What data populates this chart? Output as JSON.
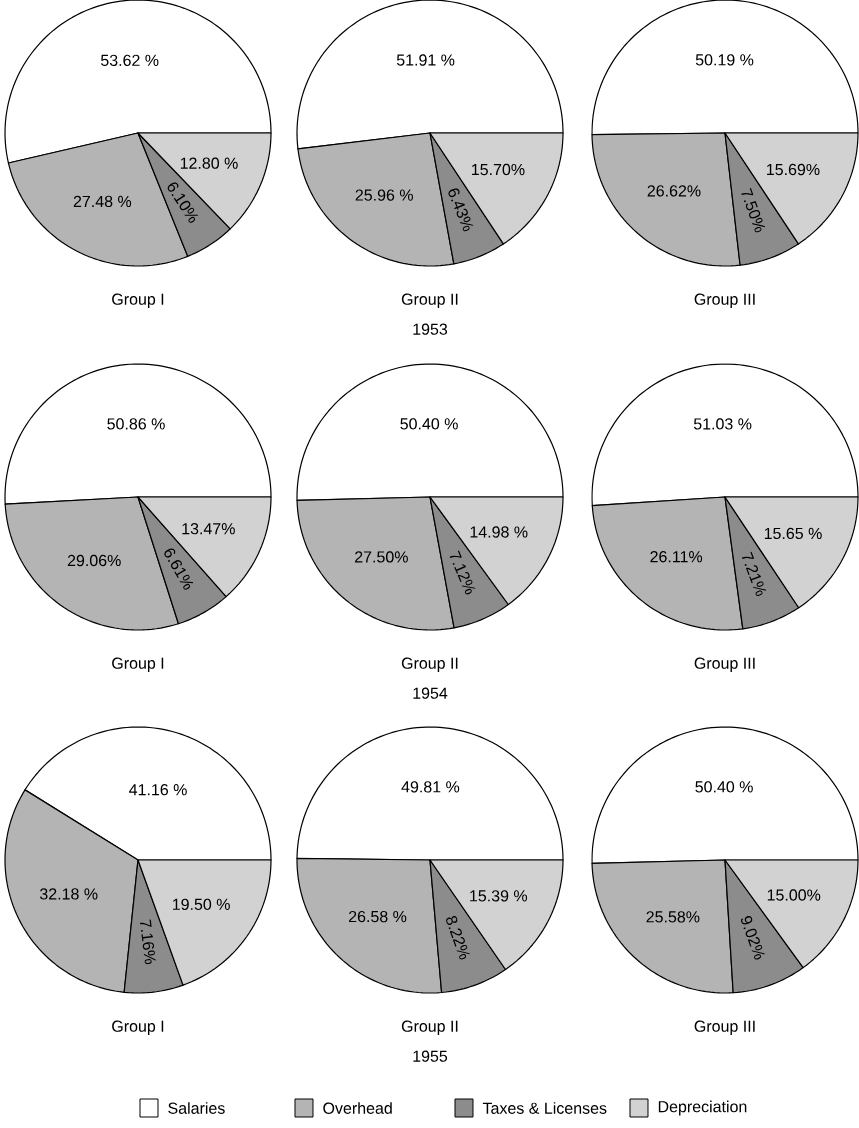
{
  "chart_data": [
    {
      "type": "pie",
      "title": "Group I",
      "categories": [
        null,
        null,
        null,
        null
      ],
      "values": [
        53.62,
        27.48,
        6.1,
        12.8
      ],
      "value_labels": [
        "53.62 %",
        "27.48 %",
        "6.10%",
        "12.80 %"
      ],
      "colors": [
        "#ffffff",
        "#b4b4b4",
        "#8c8c8c",
        "#d2d2d2"
      ]
    },
    {
      "type": "pie",
      "title": "Group II",
      "categories": [
        null,
        null,
        null,
        null
      ],
      "values": [
        51.91,
        25.96,
        6.43,
        15.7
      ],
      "value_labels": [
        "51.91 %",
        "25.96 %",
        "6.43%",
        "15.70%"
      ],
      "colors": [
        "#ffffff",
        "#b4b4b4",
        "#8c8c8c",
        "#d2d2d2"
      ],
      "annotations": [
        "1953"
      ]
    },
    {
      "type": "pie",
      "title": "Group III",
      "categories": [
        null,
        null,
        null,
        null
      ],
      "values": [
        50.19,
        26.62,
        7.5,
        15.69
      ],
      "value_labels": [
        "50.19 %",
        "26.62%",
        "7.50%",
        "15.69%"
      ],
      "colors": [
        "#ffffff",
        "#b4b4b4",
        "#8c8c8c",
        "#d2d2d2"
      ]
    },
    {
      "type": "pie",
      "title": "Group I",
      "categories": [
        null,
        null,
        null,
        null
      ],
      "values": [
        50.86,
        29.06,
        6.61,
        13.47
      ],
      "value_labels": [
        "50.86 %",
        "29.06%",
        "6.61%",
        "13.47%"
      ],
      "colors": [
        "#ffffff",
        "#b4b4b4",
        "#8c8c8c",
        "#d2d2d2"
      ]
    },
    {
      "type": "pie",
      "title": "Group II",
      "categories": [
        null,
        null,
        null,
        null
      ],
      "values": [
        50.4,
        27.5,
        7.12,
        14.98
      ],
      "value_labels": [
        "50.40 %",
        "27.50%",
        "7.12%",
        "14.98 %"
      ],
      "colors": [
        "#ffffff",
        "#b4b4b4",
        "#8c8c8c",
        "#d2d2d2"
      ],
      "annotations": [
        "1954"
      ]
    },
    {
      "type": "pie",
      "title": "Group III",
      "categories": [
        null,
        null,
        null,
        null
      ],
      "values": [
        51.03,
        26.11,
        7.21,
        15.65
      ],
      "value_labels": [
        "51.03 %",
        "26.11%",
        "7.21%",
        "15.65 %"
      ],
      "colors": [
        "#ffffff",
        "#b4b4b4",
        "#8c8c8c",
        "#d2d2d2"
      ]
    },
    {
      "type": "pie",
      "title": "Group I",
      "categories": [
        null,
        null,
        null,
        null
      ],
      "values": [
        41.16,
        32.18,
        7.16,
        19.5
      ],
      "value_labels": [
        "41.16 %",
        "32.18 %",
        "7.16%",
        "19.50 %"
      ],
      "colors": [
        "#ffffff",
        "#b4b4b4",
        "#8c8c8c",
        "#d2d2d2"
      ]
    },
    {
      "type": "pie",
      "title": "Group II",
      "categories": [
        "Salaries",
        "Overhead",
        "Taxes & Licenses",
        "Depreciation"
      ],
      "values": [
        49.81,
        26.58,
        8.22,
        15.39
      ],
      "value_labels": [
        "49.81 %",
        "26.58 %",
        "8.22%",
        "15.39 %"
      ],
      "colors": [
        "#ffffff",
        "#b4b4b4",
        "#8c8c8c",
        "#d2d2d2"
      ],
      "annotations": [
        "1955"
      ],
      "legend": "bottom"
    },
    {
      "type": "pie",
      "title": "Group III",
      "categories": [
        null,
        null,
        null,
        null
      ],
      "values": [
        50.4,
        25.58,
        9.02,
        15.0
      ],
      "value_labels": [
        "50.40 %",
        "25.58%",
        "9.02%",
        "15.00%"
      ],
      "colors": [
        "#ffffff",
        "#b4b4b4",
        "#8c8c8c",
        "#d2d2d2"
      ]
    }
  ]
}
